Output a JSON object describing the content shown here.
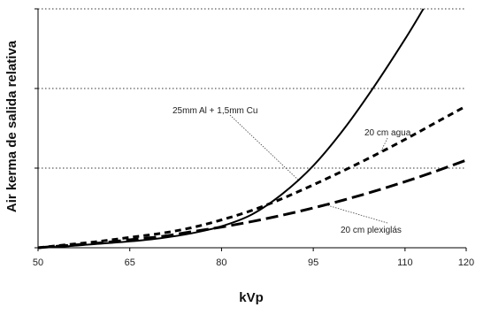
{
  "chart_data": {
    "type": "line",
    "title": "",
    "xlabel": "kVp",
    "ylabel": "Air kerma de salida relativa",
    "xlim": [
      50,
      120
    ],
    "ylim": [
      0,
      3
    ],
    "x_ticks": [
      50,
      65,
      80,
      95,
      110,
      120
    ],
    "x_tick_labels": [
      "50",
      "65",
      "80",
      "95",
      "110",
      "120"
    ],
    "y_ticks": [
      0,
      1,
      2,
      3
    ],
    "grid": "horizontal dotted at y=1 and y=2",
    "legend": "none (inline annotations with leader lines)",
    "series": [
      {
        "name": "25mm Al + 1,5mm Cu",
        "style": "solid",
        "color": "#000000",
        "x": [
          50,
          55,
          60,
          65,
          70,
          75,
          80,
          85,
          90,
          95,
          100,
          105,
          110,
          113
        ],
        "y": [
          0.0,
          0.02,
          0.05,
          0.08,
          0.12,
          0.18,
          0.27,
          0.42,
          0.68,
          1.03,
          1.49,
          2.03,
          2.62,
          3.0
        ]
      },
      {
        "name": "20 cm agua",
        "style": "dashed",
        "color": "#000000",
        "x": [
          50,
          55,
          60,
          65,
          70,
          75,
          80,
          85,
          90,
          95,
          100,
          105,
          110,
          115,
          120
        ],
        "y": [
          0.0,
          0.04,
          0.08,
          0.13,
          0.18,
          0.25,
          0.35,
          0.47,
          0.62,
          0.79,
          0.97,
          1.16,
          1.36,
          1.57,
          1.78
        ]
      },
      {
        "name": "20 cm plexiglás",
        "style": "long-dashed",
        "color": "#000000",
        "x": [
          50,
          55,
          60,
          65,
          70,
          75,
          80,
          85,
          90,
          95,
          100,
          105,
          110,
          115,
          120
        ],
        "y": [
          0.0,
          0.03,
          0.06,
          0.1,
          0.14,
          0.2,
          0.26,
          0.33,
          0.41,
          0.5,
          0.6,
          0.71,
          0.83,
          0.96,
          1.1
        ]
      }
    ],
    "annotations": [
      {
        "text": "25mm Al + 1,5mm Cu",
        "series": 0,
        "at_x": 92.5
      },
      {
        "text": "20 cm agua",
        "series": 1,
        "at_x": 106
      },
      {
        "text": "20 cm plexiglás",
        "series": 2,
        "at_x": 97
      }
    ]
  }
}
